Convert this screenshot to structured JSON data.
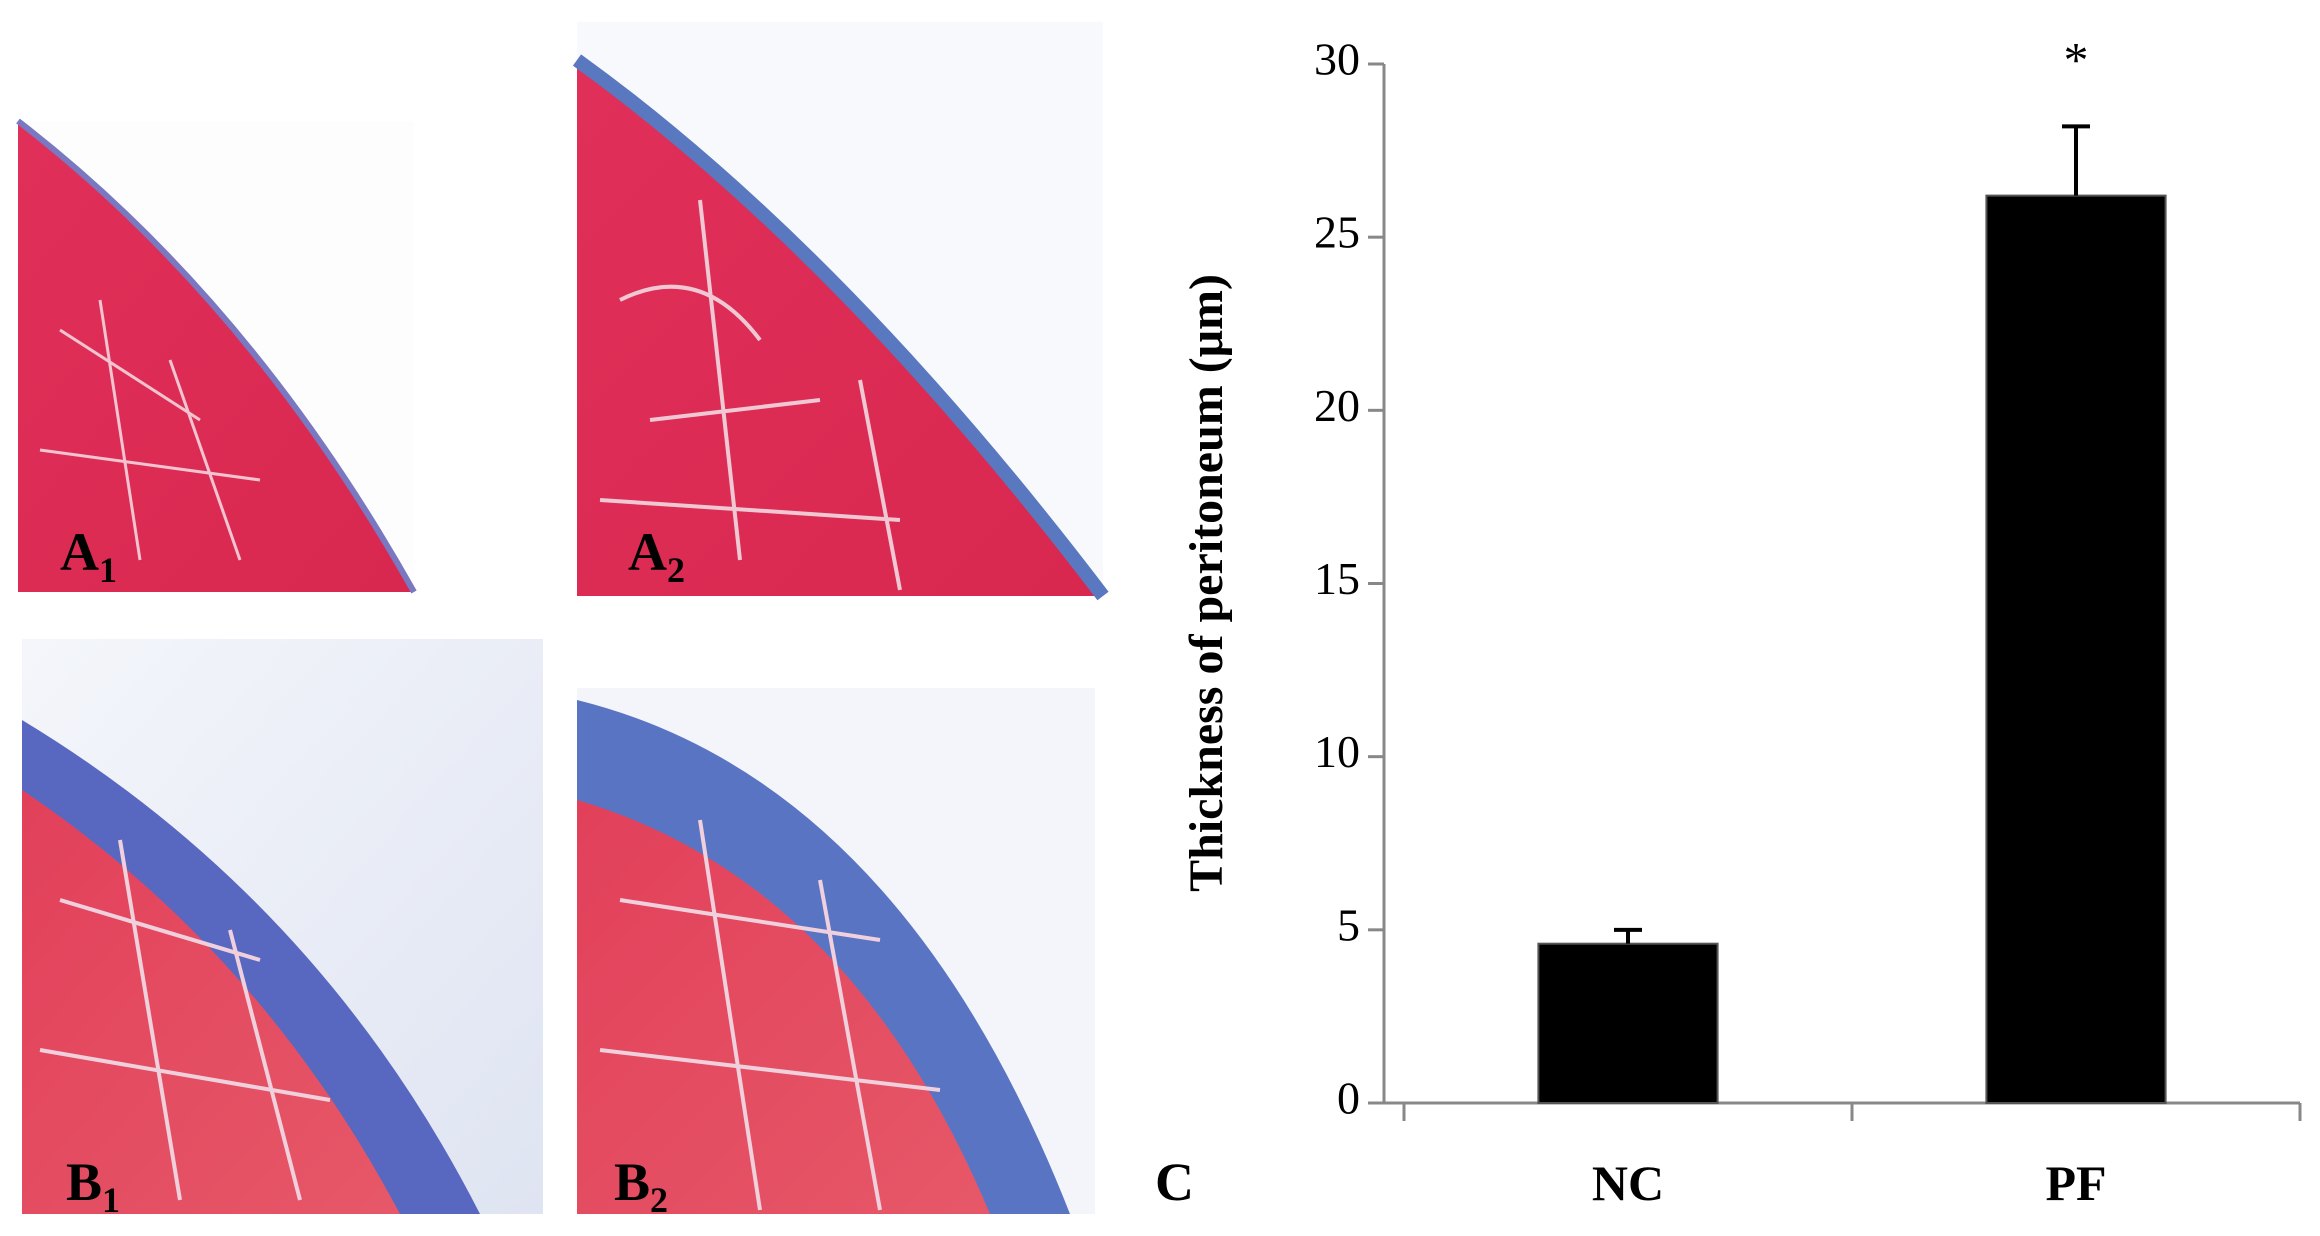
{
  "panels": [
    {
      "letter": "A",
      "sub": "1"
    },
    {
      "letter": "A",
      "sub": "2"
    },
    {
      "letter": "B",
      "sub": "1"
    },
    {
      "letter": "B",
      "sub": "2"
    }
  ],
  "chart_data": {
    "type": "bar",
    "panel_label": "C",
    "y_label": "Thickness of peritoneum (μm)",
    "categories": [
      "NC",
      "PF"
    ],
    "values": [
      4.6,
      26.2
    ],
    "errors": [
      0.4,
      2.0
    ],
    "color": "#000000",
    "annotations": [
      {
        "category": "PF",
        "text": "*"
      }
    ],
    "ylim": [
      0,
      30
    ],
    "yticks": [
      0,
      5,
      10,
      15,
      20,
      25,
      30
    ],
    "grid": false
  }
}
